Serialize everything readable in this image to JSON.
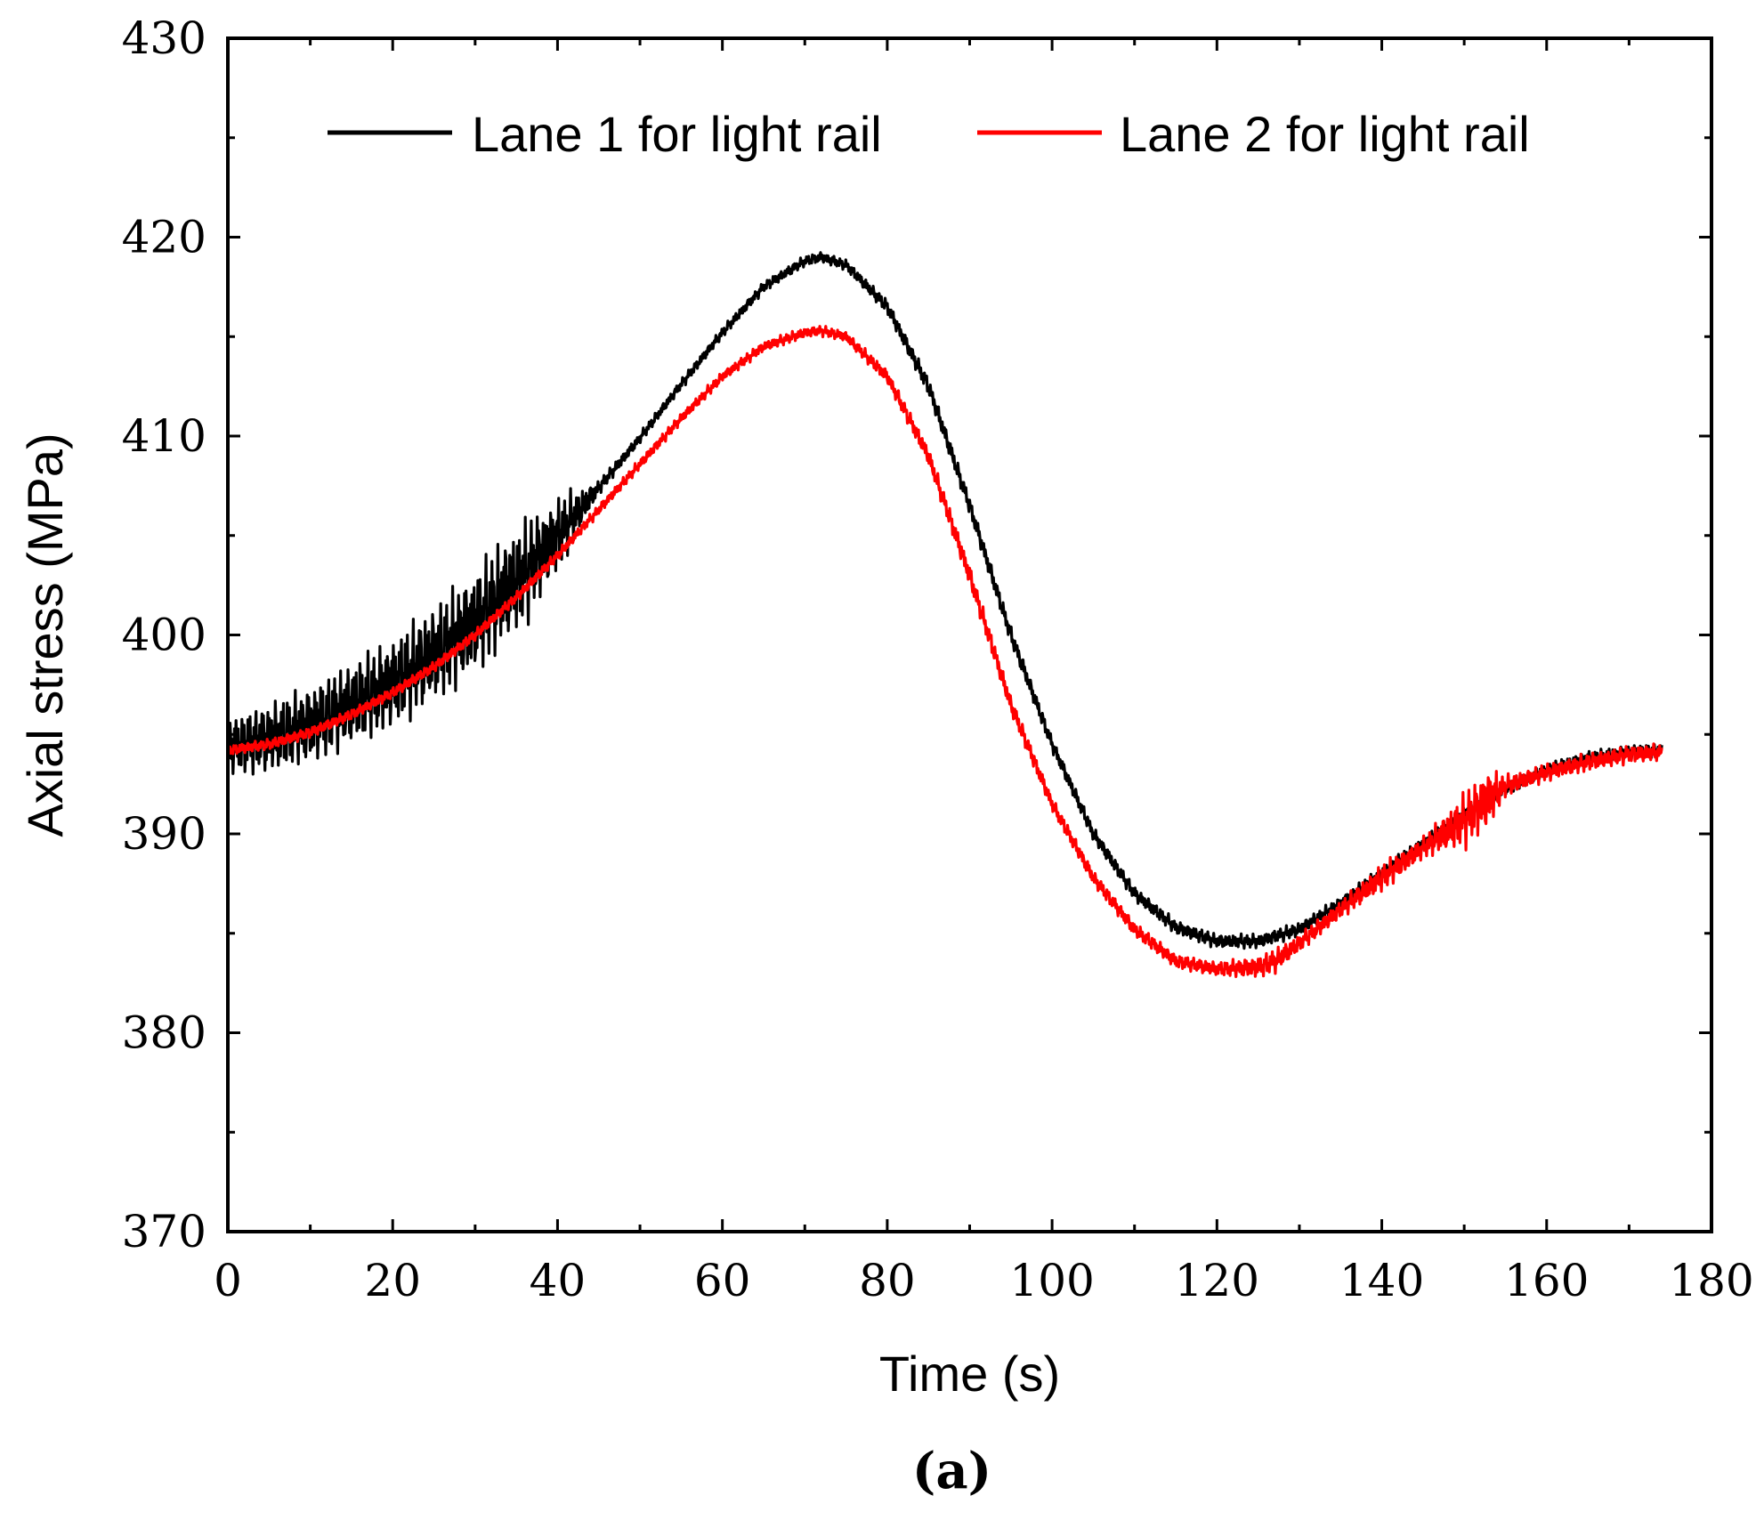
{
  "chart_data": {
    "type": "line",
    "title": "",
    "xlabel": "Time (s)",
    "ylabel": "Axial stress (MPa)",
    "caption": "(a)",
    "xlim": [
      0,
      180
    ],
    "ylim": [
      370,
      430
    ],
    "x_ticks": [
      0,
      20,
      40,
      60,
      80,
      100,
      120,
      140,
      160,
      180
    ],
    "y_ticks": [
      370,
      380,
      390,
      400,
      410,
      420,
      430
    ],
    "x_minor_step": 10,
    "y_minor_step": 5,
    "legend_position": "top",
    "grid": false,
    "series": [
      {
        "name": "Lane 1 for light rail",
        "color": "#000000",
        "x": [
          0,
          5,
          10,
          15,
          20,
          25,
          30,
          35,
          40,
          45,
          50,
          55,
          60,
          65,
          70,
          72,
          75,
          80,
          85,
          90,
          95,
          100,
          105,
          110,
          115,
          120,
          125,
          130,
          135,
          140,
          145,
          150,
          155,
          160,
          165,
          170,
          174
        ],
        "y": [
          394.4,
          394.8,
          395.5,
          396.5,
          397.6,
          399.0,
          400.7,
          402.7,
          405.0,
          407.4,
          409.9,
          412.6,
          415.2,
          417.5,
          418.8,
          419.0,
          418.6,
          416.5,
          412.5,
          406.5,
          400.0,
          394.5,
          390.0,
          387.0,
          385.3,
          384.6,
          384.6,
          385.2,
          386.5,
          388.0,
          389.5,
          391.0,
          392.3,
          393.2,
          393.8,
          394.1,
          394.2
        ],
        "noise": [
          1.6,
          2.0,
          2.2,
          2.4,
          2.6,
          2.8,
          3.0,
          3.2,
          2.2,
          0.4,
          0.3,
          0.3,
          0.3,
          0.3,
          0.3,
          0.3,
          0.3,
          0.4,
          0.5,
          0.5,
          0.5,
          0.4,
          0.4,
          0.4,
          0.4,
          0.4,
          0.4,
          0.4,
          0.4,
          0.4,
          0.4,
          0.4,
          0.4,
          0.4,
          0.4,
          0.4,
          0.4
        ]
      },
      {
        "name": "Lane 2 for light rail",
        "color": "#ff0000",
        "x": [
          0,
          5,
          10,
          15,
          20,
          25,
          30,
          35,
          40,
          45,
          50,
          55,
          60,
          65,
          70,
          72,
          75,
          80,
          85,
          90,
          95,
          100,
          105,
          110,
          115,
          120,
          125,
          127,
          130,
          135,
          140,
          145,
          150,
          153,
          155,
          160,
          165,
          170,
          174
        ],
        "y": [
          394.2,
          394.5,
          395.1,
          396.0,
          397.1,
          398.4,
          400.0,
          401.9,
          404.0,
          406.3,
          408.6,
          410.9,
          413.0,
          414.5,
          415.2,
          415.3,
          415.0,
          413.0,
          409.0,
          403.0,
          396.5,
          391.5,
          387.8,
          385.2,
          383.6,
          383.2,
          383.3,
          383.6,
          384.5,
          386.2,
          387.8,
          389.3,
          390.7,
          391.8,
          392.4,
          393.1,
          393.6,
          394.0,
          394.1
        ],
        "noise": [
          0.3,
          0.3,
          0.3,
          0.3,
          0.3,
          0.3,
          0.3,
          0.3,
          0.3,
          0.3,
          0.3,
          0.3,
          0.3,
          0.3,
          0.3,
          0.3,
          0.3,
          0.4,
          0.5,
          0.6,
          0.5,
          0.4,
          0.4,
          0.4,
          0.4,
          0.4,
          0.6,
          0.7,
          0.5,
          0.5,
          0.8,
          0.6,
          1.6,
          1.8,
          0.6,
          0.5,
          0.5,
          0.5,
          0.5
        ]
      }
    ]
  }
}
